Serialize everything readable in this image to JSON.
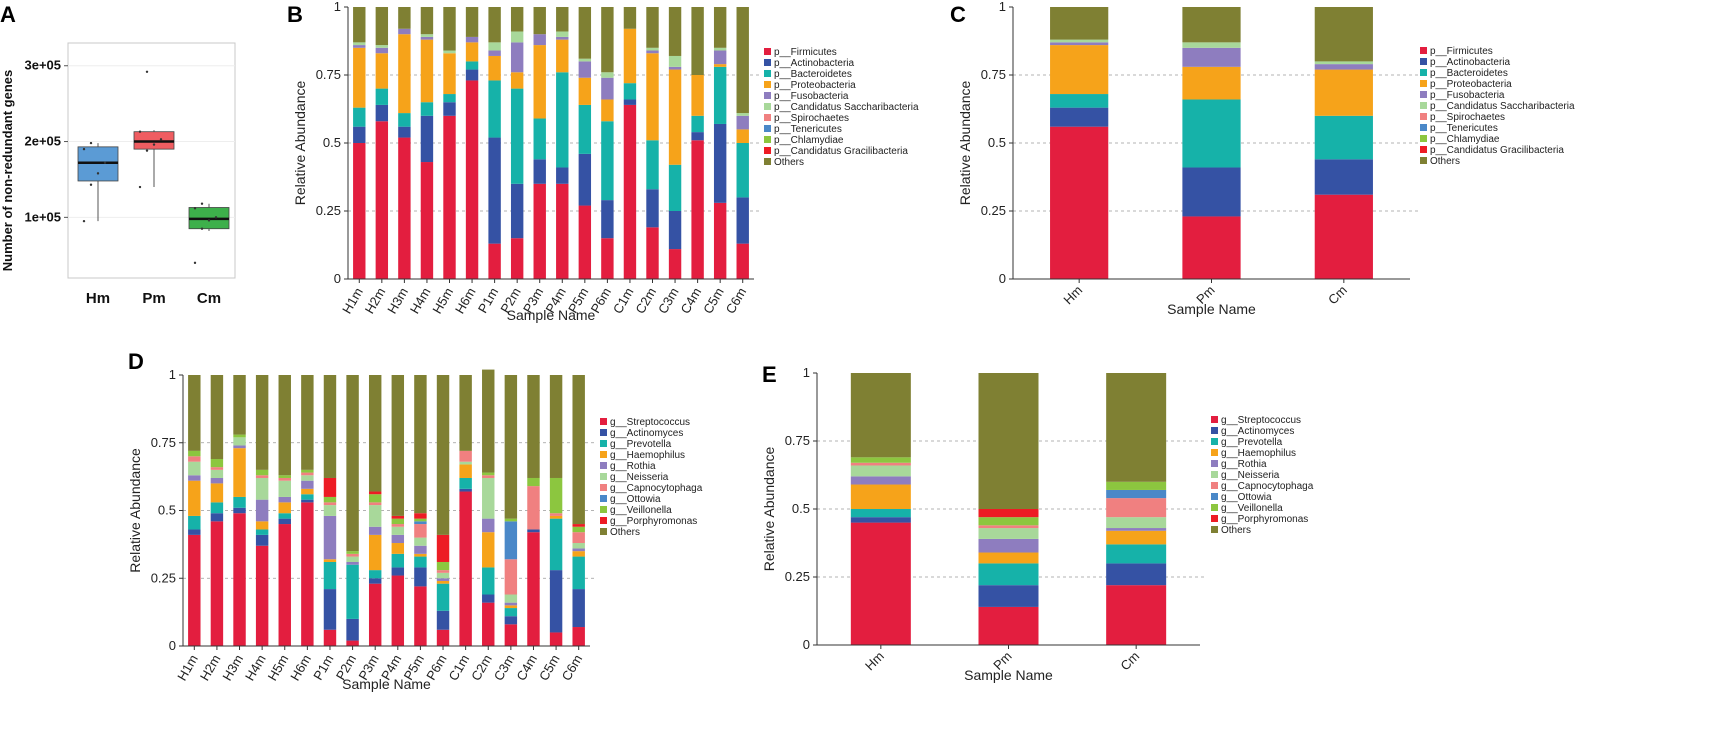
{
  "panels": {
    "A": "A",
    "B": "B",
    "C": "C",
    "D": "D",
    "E": "E"
  },
  "colors": {
    "phylum": [
      "#e31e3f",
      "#3552a4",
      "#16b2a9",
      "#f6a31a",
      "#8e7dbf",
      "#a8d89a",
      "#f08080",
      "#4a88c8",
      "#8cc63f",
      "#ed1c24",
      "#7f8033"
    ],
    "genus": [
      "#e31e3f",
      "#3552a4",
      "#16b2a9",
      "#f6a31a",
      "#8e7dbf",
      "#a8d89a",
      "#f08080",
      "#4a88c8",
      "#8cc63f",
      "#ed1c24",
      "#7f8033"
    ],
    "box": [
      "#5b9bd5",
      "#ef5d61",
      "#3db04b"
    ]
  },
  "chart_data": [
    {
      "panel": "A",
      "type": "box",
      "ylabel": "Number of non-redundant genes",
      "categories": [
        "Hm",
        "Pm",
        "Cm"
      ],
      "yticks": [
        "1e+05",
        "2e+05",
        "3e+05"
      ],
      "ytick_values": [
        100000,
        200000,
        300000
      ],
      "ylim": [
        20000,
        330000
      ],
      "boxes": [
        {
          "name": "Hm",
          "min": 95000,
          "q1": 148000,
          "median": 172000,
          "q3": 193000,
          "max": 198000,
          "points": [
            95000,
            143000,
            158000,
            172000,
            190000,
            198000
          ]
        },
        {
          "name": "Pm",
          "min": 140000,
          "q1": 190000,
          "median": 200000,
          "q3": 213000,
          "max": 215000,
          "points": [
            140000,
            188000,
            196000,
            203000,
            213000,
            292000
          ]
        },
        {
          "name": "Cm",
          "min": 82000,
          "q1": 85000,
          "median": 98000,
          "q3": 113000,
          "max": 118000,
          "points": [
            40000,
            85000,
            96000,
            100000,
            112000,
            118000
          ]
        }
      ]
    },
    {
      "panel": "B",
      "type": "stacked-bar",
      "xlabel": "Sample Name",
      "ylabel": "Relative Abundance",
      "ylim": [
        0,
        1
      ],
      "yticks": [
        "0",
        "0.25",
        "0.5",
        "0.75",
        "1"
      ],
      "ytick_values": [
        0,
        0.25,
        0.5,
        0.75,
        1
      ],
      "categories": [
        "H1m",
        "H2m",
        "H3m",
        "H4m",
        "H5m",
        "H6m",
        "P1m",
        "P2m",
        "P3m",
        "P4m",
        "P5m",
        "P6m",
        "C1m",
        "C2m",
        "C3m",
        "C4m",
        "C5m",
        "C6m"
      ],
      "legend": [
        "p__Firmicutes",
        "p__Actinobacteria",
        "p__Bacteroidetes",
        "p__Proteobacteria",
        "p__Fusobacteria",
        "p__Candidatus Saccharibacteria",
        "p__Spirochaetes",
        "p__Tenericutes",
        "p__Chlamydiae",
        "p__Candidatus Gracilibacteria",
        "Others"
      ],
      "series": [
        {
          "name": "p__Firmicutes",
          "values": [
            0.5,
            0.58,
            0.52,
            0.43,
            0.6,
            0.73,
            0.13,
            0.15,
            0.35,
            0.35,
            0.27,
            0.15,
            0.64,
            0.19,
            0.11,
            0.51,
            0.28,
            0.13
          ]
        },
        {
          "name": "p__Actinobacteria",
          "values": [
            0.06,
            0.06,
            0.04,
            0.17,
            0.05,
            0.04,
            0.39,
            0.2,
            0.09,
            0.06,
            0.19,
            0.14,
            0.02,
            0.14,
            0.14,
            0.03,
            0.29,
            0.17
          ]
        },
        {
          "name": "p__Bacteroidetes",
          "values": [
            0.07,
            0.06,
            0.05,
            0.05,
            0.03,
            0.03,
            0.21,
            0.35,
            0.15,
            0.35,
            0.18,
            0.29,
            0.06,
            0.18,
            0.17,
            0.06,
            0.21,
            0.2
          ]
        },
        {
          "name": "p__Proteobacteria",
          "values": [
            0.22,
            0.13,
            0.29,
            0.23,
            0.15,
            0.07,
            0.09,
            0.06,
            0.27,
            0.12,
            0.1,
            0.08,
            0.2,
            0.32,
            0.35,
            0.15,
            0.01,
            0.05
          ]
        },
        {
          "name": "p__Fusobacteria",
          "values": [
            0.01,
            0.02,
            0.02,
            0.01,
            0.0,
            0.02,
            0.02,
            0.11,
            0.04,
            0.01,
            0.06,
            0.08,
            0.0,
            0.01,
            0.01,
            0.0,
            0.05,
            0.05
          ]
        },
        {
          "name": "p__Candidatus Saccharibacteria",
          "values": [
            0.01,
            0.01,
            0.0,
            0.01,
            0.01,
            0.0,
            0.03,
            0.04,
            0.0,
            0.02,
            0.01,
            0.02,
            0.0,
            0.01,
            0.04,
            0.0,
            0.01,
            0.01
          ]
        },
        {
          "name": "p__Spirochaetes",
          "values": [
            0.0,
            0.0,
            0.0,
            0.0,
            0.0,
            0.0,
            0.0,
            0.0,
            0.0,
            0.0,
            0.0,
            0.0,
            0.0,
            0.0,
            0.0,
            0.0,
            0.0,
            0.0
          ]
        },
        {
          "name": "p__Tenericutes",
          "values": [
            0.0,
            0.0,
            0.0,
            0.0,
            0.0,
            0.0,
            0.0,
            0.0,
            0.0,
            0.0,
            0.0,
            0.0,
            0.0,
            0.0,
            0.0,
            0.0,
            0.0,
            0.0
          ]
        },
        {
          "name": "p__Chlamydiae",
          "values": [
            0.0,
            0.0,
            0.0,
            0.0,
            0.0,
            0.0,
            0.0,
            0.0,
            0.0,
            0.0,
            0.0,
            0.0,
            0.0,
            0.0,
            0.0,
            0.0,
            0.0,
            0.0
          ]
        },
        {
          "name": "p__Candidatus Gracilibacteria",
          "values": [
            0.0,
            0.0,
            0.0,
            0.0,
            0.0,
            0.0,
            0.0,
            0.0,
            0.0,
            0.0,
            0.0,
            0.0,
            0.0,
            0.0,
            0.0,
            0.0,
            0.0,
            0.0
          ]
        },
        {
          "name": "Others",
          "values": [
            0.13,
            0.14,
            0.08,
            0.1,
            0.16,
            0.11,
            0.13,
            0.09,
            0.1,
            0.09,
            0.19,
            0.24,
            0.08,
            0.15,
            0.18,
            0.25,
            0.15,
            0.39
          ]
        }
      ]
    },
    {
      "panel": "C",
      "type": "stacked-bar",
      "xlabel": "Sample Name",
      "ylabel": "Relative Abundance",
      "ylim": [
        0,
        1
      ],
      "yticks": [
        "0",
        "0.25",
        "0.5",
        "0.75",
        "1"
      ],
      "ytick_values": [
        0,
        0.25,
        0.5,
        0.75,
        1
      ],
      "categories": [
        "Hm",
        "Pm",
        "Cm"
      ],
      "legend": [
        "p__Firmicutes",
        "p__Actinobacteria",
        "p__Bacteroidetes",
        "p__Proteobacteria",
        "p__Fusobacteria",
        "p__Candidatus Saccharibacteria",
        "p__Spirochaetes",
        "p__Tenericutes",
        "p__Chlamydiae",
        "p__Candidatus Gracilibacteria",
        "Others"
      ],
      "series": [
        {
          "name": "p__Firmicutes",
          "values": [
            0.56,
            0.23,
            0.31
          ]
        },
        {
          "name": "p__Actinobacteria",
          "values": [
            0.07,
            0.18,
            0.13
          ]
        },
        {
          "name": "p__Bacteroidetes",
          "values": [
            0.05,
            0.25,
            0.16
          ]
        },
        {
          "name": "p__Proteobacteria",
          "values": [
            0.18,
            0.12,
            0.17
          ]
        },
        {
          "name": "p__Fusobacteria",
          "values": [
            0.01,
            0.07,
            0.02
          ]
        },
        {
          "name": "p__Candidatus Saccharibacteria",
          "values": [
            0.01,
            0.02,
            0.01
          ]
        },
        {
          "name": "p__Spirochaetes",
          "values": [
            0.0,
            0.0,
            0.0
          ]
        },
        {
          "name": "p__Tenericutes",
          "values": [
            0.0,
            0.0,
            0.0
          ]
        },
        {
          "name": "p__Chlamydiae",
          "values": [
            0.0,
            0.0,
            0.0
          ]
        },
        {
          "name": "p__Candidatus Gracilibacteria",
          "values": [
            0.0,
            0.0,
            0.0
          ]
        },
        {
          "name": "Others",
          "values": [
            0.12,
            0.13,
            0.2
          ]
        }
      ]
    },
    {
      "panel": "D",
      "type": "stacked-bar",
      "xlabel": "Sample Name",
      "ylabel": "Relative Abundance",
      "ylim": [
        0,
        1
      ],
      "yticks": [
        "0",
        "0.25",
        "0.5",
        "0.75",
        "1"
      ],
      "ytick_values": [
        0,
        0.25,
        0.5,
        0.75,
        1
      ],
      "categories": [
        "H1m",
        "H2m",
        "H3m",
        "H4m",
        "H5m",
        "H6m",
        "P1m",
        "P2m",
        "P3m",
        "P4m",
        "P5m",
        "P6m",
        "C1m",
        "C2m",
        "C3m",
        "C4m",
        "C5m",
        "C6m"
      ],
      "legend": [
        "g__Streptococcus",
        "g__Actinomyces",
        "g__Prevotella",
        "g__Haemophilus",
        "g__Rothia",
        "g__Neisseria",
        "g__Capnocytophaga",
        "g__Ottowia",
        "g__Veillonella",
        "g__Porphyromonas",
        "Others"
      ],
      "series": [
        {
          "name": "g__Streptococcus",
          "values": [
            0.41,
            0.46,
            0.49,
            0.37,
            0.45,
            0.53,
            0.06,
            0.02,
            0.23,
            0.26,
            0.22,
            0.06,
            0.57,
            0.16,
            0.08,
            0.42,
            0.05,
            0.07
          ]
        },
        {
          "name": "g__Actinomyces",
          "values": [
            0.02,
            0.03,
            0.02,
            0.04,
            0.02,
            0.01,
            0.15,
            0.08,
            0.02,
            0.03,
            0.07,
            0.07,
            0.01,
            0.03,
            0.03,
            0.01,
            0.23,
            0.14
          ]
        },
        {
          "name": "g__Prevotella",
          "values": [
            0.05,
            0.04,
            0.04,
            0.02,
            0.02,
            0.02,
            0.1,
            0.2,
            0.03,
            0.05,
            0.04,
            0.1,
            0.04,
            0.1,
            0.03,
            0.0,
            0.19,
            0.12
          ]
        },
        {
          "name": "g__Haemophilus",
          "values": [
            0.13,
            0.07,
            0.18,
            0.03,
            0.04,
            0.02,
            0.01,
            0.0,
            0.13,
            0.04,
            0.01,
            0.01,
            0.05,
            0.13,
            0.01,
            0.0,
            0.01,
            0.02
          ]
        },
        {
          "name": "g__Rothia",
          "values": [
            0.02,
            0.02,
            0.01,
            0.08,
            0.02,
            0.03,
            0.16,
            0.01,
            0.03,
            0.03,
            0.03,
            0.01,
            0.0,
            0.05,
            0.01,
            0.0,
            0.0,
            0.01
          ]
        },
        {
          "name": "g__Neisseria",
          "values": [
            0.05,
            0.03,
            0.03,
            0.08,
            0.06,
            0.02,
            0.04,
            0.02,
            0.08,
            0.03,
            0.03,
            0.02,
            0.01,
            0.15,
            0.03,
            0.0,
            0.0,
            0.02
          ]
        },
        {
          "name": "g__Capnocytophaga",
          "values": [
            0.02,
            0.01,
            0.0,
            0.01,
            0.01,
            0.01,
            0.01,
            0.01,
            0.01,
            0.01,
            0.05,
            0.01,
            0.04,
            0.01,
            0.13,
            0.16,
            0.01,
            0.04
          ]
        },
        {
          "name": "g__Ottowia",
          "values": [
            0.0,
            0.0,
            0.0,
            0.0,
            0.0,
            0.0,
            0.0,
            0.0,
            0.0,
            0.0,
            0.01,
            0.0,
            0.0,
            0.0,
            0.14,
            0.0,
            0.0,
            0.0
          ]
        },
        {
          "name": "g__Veillonella",
          "values": [
            0.02,
            0.03,
            0.01,
            0.02,
            0.01,
            0.01,
            0.02,
            0.01,
            0.03,
            0.02,
            0.01,
            0.03,
            0.0,
            0.01,
            0.01,
            0.03,
            0.13,
            0.02
          ]
        },
        {
          "name": "g__Porphyromonas",
          "values": [
            0.0,
            0.0,
            0.0,
            0.0,
            0.0,
            0.0,
            0.07,
            0.0,
            0.01,
            0.01,
            0.02,
            0.1,
            0.0,
            0.0,
            0.0,
            0.0,
            0.0,
            0.01
          ]
        },
        {
          "name": "Others",
          "values": [
            0.28,
            0.31,
            0.22,
            0.35,
            0.37,
            0.35,
            0.38,
            0.65,
            0.43,
            0.52,
            0.51,
            0.59,
            0.28,
            0.38,
            0.53,
            0.38,
            0.38,
            0.55
          ]
        }
      ]
    },
    {
      "panel": "E",
      "type": "stacked-bar",
      "xlabel": "Sample Name",
      "ylabel": "Relative Abundance",
      "ylim": [
        0,
        1
      ],
      "yticks": [
        "0",
        "0.25",
        "0.5",
        "0.75",
        "1"
      ],
      "ytick_values": [
        0,
        0.25,
        0.5,
        0.75,
        1
      ],
      "categories": [
        "Hm",
        "Pm",
        "Cm"
      ],
      "legend": [
        "g__Streptococcus",
        "g__Actinomyces",
        "g__Prevotella",
        "g__Haemophilus",
        "g__Rothia",
        "g__Neisseria",
        "g__Capnocytophaga",
        "g__Ottowia",
        "g__Veillonella",
        "g__Porphyromonas",
        "Others"
      ],
      "series": [
        {
          "name": "g__Streptococcus",
          "values": [
            0.45,
            0.14,
            0.22
          ]
        },
        {
          "name": "g__Actinomyces",
          "values": [
            0.02,
            0.08,
            0.08
          ]
        },
        {
          "name": "g__Prevotella",
          "values": [
            0.03,
            0.08,
            0.07
          ]
        },
        {
          "name": "g__Haemophilus",
          "values": [
            0.09,
            0.04,
            0.05
          ]
        },
        {
          "name": "g__Rothia",
          "values": [
            0.03,
            0.05,
            0.01
          ]
        },
        {
          "name": "g__Neisseria",
          "values": [
            0.04,
            0.04,
            0.04
          ]
        },
        {
          "name": "g__Capnocytophaga",
          "values": [
            0.01,
            0.01,
            0.07
          ]
        },
        {
          "name": "g__Ottowia",
          "values": [
            0.0,
            0.0,
            0.03
          ]
        },
        {
          "name": "g__Veillonella",
          "values": [
            0.02,
            0.03,
            0.03
          ]
        },
        {
          "name": "g__Porphyromonas",
          "values": [
            0.0,
            0.03,
            0.0
          ]
        },
        {
          "name": "Others",
          "values": [
            0.31,
            0.5,
            0.4
          ]
        }
      ]
    }
  ]
}
